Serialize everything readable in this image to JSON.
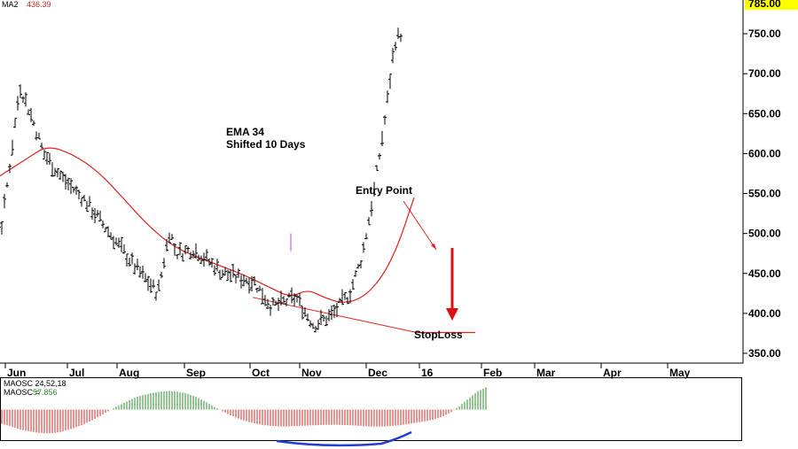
{
  "chart_data": {
    "type": "bar",
    "price_panel": {
      "indicator_label": "MA2",
      "indicator_value": "436.39",
      "last_price_tag": "785.00",
      "ylim": [
        340,
        790
      ],
      "y_ticks": [
        {
          "value": 750,
          "label": "750.00"
        },
        {
          "value": 700,
          "label": "700.00"
        },
        {
          "value": 650,
          "label": "650.00"
        },
        {
          "value": 600,
          "label": "600.00"
        },
        {
          "value": 550,
          "label": "550.00"
        },
        {
          "value": 500,
          "label": "500.00"
        },
        {
          "value": 450,
          "label": "450.00"
        },
        {
          "value": 400,
          "label": "400.00"
        },
        {
          "value": 350,
          "label": "350.00"
        }
      ],
      "ema_label_line1": "EMA 34",
      "ema_label_line2": "Shifted 10 Days",
      "entry_label": "Entry Point",
      "stoploss_label": "StopLoss",
      "stoploss_value": 376,
      "support_line": [
        [
          0.0,
          420
        ],
        [
          2.6,
          376
        ]
      ],
      "price_path": [
        [
          -1.0,
          550
        ],
        [
          -0.5,
          540
        ],
        [
          -0.2,
          510
        ],
        [
          0.0,
          625
        ],
        [
          0.1,
          685
        ],
        [
          0.3,
          645
        ],
        [
          0.5,
          600
        ],
        [
          0.8,
          570
        ],
        [
          1.2,
          540
        ],
        [
          1.6,
          500
        ],
        [
          2.0,
          460
        ],
        [
          2.4,
          425
        ],
        [
          2.6,
          505
        ],
        [
          2.7,
          475
        ],
        [
          3.0,
          480
        ],
        [
          3.5,
          450
        ],
        [
          4.0,
          440
        ],
        [
          4.3,
          408
        ],
        [
          4.7,
          420
        ],
        [
          5.0,
          385
        ],
        [
          5.3,
          398
        ],
        [
          5.6,
          425
        ],
        [
          5.8,
          470
        ],
        [
          6.0,
          550
        ],
        [
          6.2,
          650
        ],
        [
          6.35,
          740
        ],
        [
          6.45,
          750
        ]
      ],
      "ema_path": [
        [
          -1.0,
          590
        ],
        [
          -0.7,
          575
        ],
        [
          -0.4,
          565
        ],
        [
          -0.1,
          580
        ],
        [
          0.2,
          595
        ],
        [
          0.5,
          610
        ],
        [
          0.9,
          600
        ],
        [
          1.4,
          578
        ],
        [
          1.9,
          545
        ],
        [
          2.3,
          510
        ],
        [
          2.7,
          482
        ],
        [
          3.2,
          465
        ],
        [
          3.7,
          450
        ],
        [
          4.2,
          432
        ],
        [
          4.6,
          420
        ],
        [
          4.95,
          430
        ],
        [
          5.2,
          420
        ],
        [
          5.5,
          412
        ],
        [
          5.8,
          420
        ],
        [
          6.1,
          445
        ],
        [
          6.4,
          485
        ],
        [
          6.7,
          545
        ]
      ]
    },
    "x_axis": {
      "labels": [
        "Jun",
        "Jul",
        "Aug",
        "Sep",
        "Oct",
        "Nov",
        "Dec",
        "16",
        "Feb",
        "Mar",
        "Apr",
        "May"
      ]
    },
    "oscillator_panel": {
      "label_line1": "MAOSC 24,52,18",
      "label_line2_prefix": "MAOSC =",
      "label_line2_value": "57.856",
      "ylim": [
        -80,
        80
      ],
      "histogram": [
        -40,
        -46,
        -55,
        -60,
        -64,
        -66,
        -65,
        -60,
        -53,
        -44,
        -33,
        -20,
        -6,
        8,
        20,
        32,
        40,
        46,
        50,
        52,
        50,
        45,
        36,
        24,
        10,
        -4,
        -16,
        -26,
        -34,
        -40,
        -44,
        -46,
        -47,
        -46,
        -45,
        -44,
        -43,
        -42,
        -42,
        -43,
        -44,
        -46,
        -47,
        -47,
        -46,
        -44,
        -41,
        -37,
        -33,
        -28,
        -20,
        -8,
        10,
        30,
        50,
        62
      ],
      "positive_color": "#2e8b2e",
      "negative_color": "#cc2a2a",
      "curve_color": "#1f3fd6"
    },
    "colors": {
      "ema": "#e02020",
      "support": "#e02020",
      "stoploss_arrow": "#dd1111",
      "bars": "#000000",
      "last_price_tag_bg": "#ffff00"
    }
  }
}
